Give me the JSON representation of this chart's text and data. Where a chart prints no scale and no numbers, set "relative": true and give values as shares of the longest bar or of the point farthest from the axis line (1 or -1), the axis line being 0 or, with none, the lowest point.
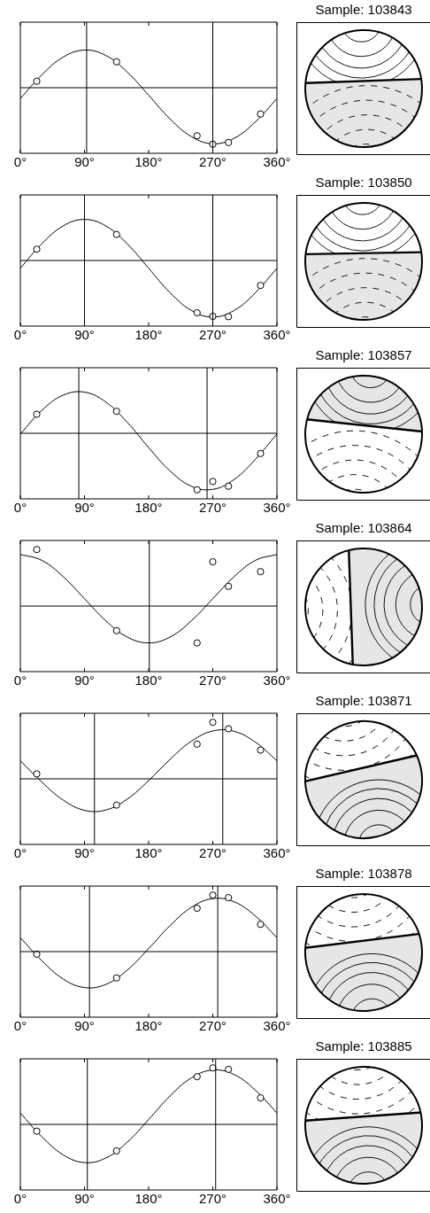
{
  "chart_data": [
    {
      "type": "scatter",
      "annotations": [
        "Sample: 103843"
      ],
      "relative": true,
      "tick_labels": "x",
      "grid": false,
      "legend": false,
      "xlim": [
        0,
        360
      ],
      "xticks": [
        {
          "value": 0,
          "label": "0°"
        },
        {
          "value": 90,
          "label": "90°"
        },
        {
          "value": 180,
          "label": "180°"
        },
        {
          "value": 270,
          "label": "270°"
        },
        {
          "value": 360,
          "label": "360°"
        }
      ],
      "series": [
        {
          "type": "line",
          "color": "#000000",
          "marker": "none",
          "x": [
            0,
            30,
            60,
            90,
            120,
            150,
            180,
            210,
            240,
            270,
            300,
            330,
            360
          ],
          "values": [
            -0.191,
            0.226,
            0.541,
            0.666,
            0.57,
            0.277,
            -0.133,
            -0.551,
            -0.865,
            -0.991,
            -0.894,
            -0.602,
            -0.191
          ]
        },
        {
          "type": "scatter",
          "color": "#000000",
          "marker": "circle",
          "x": [
            23,
            135,
            248,
            270,
            292,
            337
          ],
          "values": [
            0.114,
            0.459,
            -0.85,
            -1,
            -0.97,
            -0.464
          ]
        }
      ],
      "ref_lines": [
        {
          "axis": "y",
          "value": 0
        },
        {
          "axis": "x",
          "value": 93
        },
        {
          "axis": "x",
          "value": 270
        }
      ]
    },
    {
      "type": "scatter",
      "annotations": [
        "Sample: 103850"
      ],
      "relative": true,
      "tick_labels": "x",
      "grid": false,
      "legend": false,
      "xlim": [
        0,
        360
      ],
      "xticks": [
        {
          "value": 0,
          "label": "0°"
        },
        {
          "value": 90,
          "label": "90°"
        },
        {
          "value": 180,
          "label": "180°"
        },
        {
          "value": 270,
          "label": "270°"
        },
        {
          "value": 360,
          "label": "360°"
        }
      ],
      "series": [
        {
          "type": "line",
          "color": "#000000",
          "marker": "none",
          "x": [
            0,
            30,
            60,
            90,
            120,
            150,
            180,
            210,
            240,
            270,
            300,
            330,
            360
          ],
          "values": [
            -0.137,
            0.295,
            0.611,
            0.727,
            0.611,
            0.295,
            -0.137,
            -0.568,
            -0.884,
            -1,
            -0.884,
            -0.568,
            -0.137
          ]
        },
        {
          "type": "scatter",
          "color": "#000000",
          "marker": "circle",
          "x": [
            23,
            135,
            248,
            270,
            292,
            337
          ],
          "values": [
            0.199,
            0.46,
            -0.925,
            -0.988,
            -0.994,
            -0.441
          ]
        }
      ],
      "ref_lines": [
        {
          "axis": "y",
          "value": 0
        },
        {
          "axis": "x",
          "value": 90
        },
        {
          "axis": "x",
          "value": 270
        }
      ]
    },
    {
      "type": "scatter",
      "annotations": [
        "Sample: 103857"
      ],
      "relative": true,
      "tick_labels": "x",
      "grid": false,
      "legend": false,
      "xlim": [
        0,
        360
      ],
      "xticks": [
        {
          "value": 0,
          "label": "0°"
        },
        {
          "value": 90,
          "label": "90°"
        },
        {
          "value": 180,
          "label": "180°"
        },
        {
          "value": 270,
          "label": "270°"
        },
        {
          "value": 360,
          "label": "360°"
        }
      ],
      "series": [
        {
          "type": "line",
          "color": "#000000",
          "marker": "none",
          "x": [
            0,
            30,
            60,
            90,
            120,
            150,
            180,
            210,
            240,
            270,
            300,
            330,
            360
          ],
          "values": [
            -0.011,
            0.403,
            0.674,
            0.728,
            0.553,
            0.194,
            -0.253,
            -0.666,
            -0.937,
            -0.992,
            -0.816,
            -0.457,
            -0.011
          ]
        },
        {
          "type": "scatter",
          "color": "#000000",
          "marker": "circle",
          "x": [
            23,
            135,
            248,
            270,
            292,
            337
          ],
          "values": [
            0.337,
            0.389,
            -1,
            -0.853,
            -0.937,
            -0.358
          ]
        }
      ],
      "ref_lines": [
        {
          "axis": "y",
          "value": 0
        },
        {
          "axis": "x",
          "value": 82
        },
        {
          "axis": "x",
          "value": 262
        }
      ]
    },
    {
      "type": "scatter",
      "annotations": [
        "Sample: 103864"
      ],
      "relative": true,
      "tick_labels": "x",
      "grid": false,
      "legend": false,
      "xlim": [
        0,
        360
      ],
      "xticks": [
        {
          "value": 0,
          "label": "0°"
        },
        {
          "value": 90,
          "label": "90°"
        },
        {
          "value": 180,
          "label": "180°"
        },
        {
          "value": 270,
          "label": "270°"
        },
        {
          "value": 360,
          "label": "360°"
        }
      ],
      "series": [
        {
          "type": "line",
          "color": "#000000",
          "marker": "none",
          "x": [
            0,
            30,
            60,
            90,
            120,
            150,
            180,
            210,
            240,
            270,
            300,
            330,
            360
          ],
          "values": [
            0.913,
            0.809,
            0.522,
            0.13,
            -0.261,
            -0.548,
            -0.652,
            -0.548,
            -0.261,
            0.13,
            0.522,
            0.809,
            0.913
          ]
        },
        {
          "type": "scatter",
          "color": "#000000",
          "marker": "circle",
          "x": [
            23,
            135,
            248,
            270,
            292,
            337
          ],
          "values": [
            1,
            -0.435,
            -0.652,
            0.783,
            0.348,
            0.609
          ]
        }
      ],
      "ref_lines": [
        {
          "axis": "y",
          "value": 0
        },
        {
          "axis": "x",
          "value": 181
        }
      ]
    },
    {
      "type": "scatter",
      "annotations": [
        "Sample: 103871"
      ],
      "relative": true,
      "tick_labels": "x",
      "grid": false,
      "legend": false,
      "xlim": [
        0,
        360
      ],
      "xticks": [
        {
          "value": 0,
          "label": "0°"
        },
        {
          "value": 90,
          "label": "90°"
        },
        {
          "value": 180,
          "label": "180°"
        },
        {
          "value": 270,
          "label": "270°"
        },
        {
          "value": 360,
          "label": "360°"
        }
      ],
      "series": [
        {
          "type": "line",
          "color": "#000000",
          "marker": "none",
          "x": [
            0,
            30,
            60,
            90,
            120,
            150,
            180,
            210,
            240,
            270,
            300,
            330,
            360
          ],
          "values": [
            0.32,
            -0.055,
            -0.375,
            -0.557,
            -0.551,
            -0.358,
            -0.031,
            0.345,
            0.665,
            0.846,
            0.84,
            0.647,
            0.32
          ]
        },
        {
          "type": "scatter",
          "color": "#000000",
          "marker": "circle",
          "x": [
            23,
            135,
            248,
            270,
            292,
            337
          ],
          "values": [
            0.088,
            -0.465,
            0.614,
            1,
            0.886,
            0.509
          ]
        }
      ],
      "ref_lines": [
        {
          "axis": "y",
          "value": 0
        },
        {
          "axis": "x",
          "value": 104
        },
        {
          "axis": "x",
          "value": 284
        }
      ]
    },
    {
      "type": "scatter",
      "annotations": [
        "Sample: 103878"
      ],
      "relative": true,
      "tick_labels": "x",
      "grid": false,
      "legend": false,
      "xlim": [
        0,
        360
      ],
      "xticks": [
        {
          "value": 0,
          "label": "0°"
        },
        {
          "value": 90,
          "label": "90°"
        },
        {
          "value": 180,
          "label": "180°"
        },
        {
          "value": 270,
          "label": "270°"
        },
        {
          "value": 360,
          "label": "360°"
        }
      ],
      "series": [
        {
          "type": "line",
          "color": "#000000",
          "marker": "none",
          "x": [
            0,
            30,
            60,
            90,
            120,
            150,
            180,
            210,
            240,
            270,
            300,
            330,
            360
          ],
          "values": [
            0.247,
            -0.159,
            -0.483,
            -0.636,
            -0.58,
            -0.327,
            0.054,
            0.46,
            0.784,
            0.938,
            0.881,
            0.628,
            0.247
          ]
        },
        {
          "type": "scatter",
          "color": "#000000",
          "marker": "circle",
          "x": [
            23,
            135,
            248,
            270,
            292,
            337
          ],
          "values": [
            -0.045,
            -0.466,
            0.767,
            1,
            0.955,
            0.483
          ]
        }
      ],
      "ref_lines": [
        {
          "axis": "y",
          "value": 0
        },
        {
          "axis": "x",
          "value": 97
        },
        {
          "axis": "x",
          "value": 277
        }
      ]
    },
    {
      "type": "scatter",
      "annotations": [
        "Sample: 103885"
      ],
      "relative": true,
      "tick_labels": "x",
      "grid": false,
      "legend": false,
      "xlim": [
        0,
        360
      ],
      "xticks": [
        {
          "value": 0,
          "label": "0°"
        },
        {
          "value": 90,
          "label": "90°"
        },
        {
          "value": 180,
          "label": "180°"
        },
        {
          "value": 270,
          "label": "270°"
        },
        {
          "value": 360,
          "label": "360°"
        }
      ],
      "series": [
        {
          "type": "line",
          "color": "#000000",
          "marker": "none",
          "x": [
            0,
            30,
            60,
            90,
            120,
            150,
            180,
            210,
            240,
            270,
            300,
            330,
            360
          ],
          "values": [
            0.201,
            -0.216,
            -0.537,
            -0.676,
            -0.594,
            -0.315,
            0.086,
            0.503,
            0.823,
            0.962,
            0.881,
            0.602,
            0.201
          ]
        },
        {
          "type": "scatter",
          "color": "#000000",
          "marker": "circle",
          "x": [
            23,
            135,
            248,
            270,
            292,
            337
          ],
          "values": [
            -0.12,
            -0.469,
            0.844,
            1,
            0.974,
            0.469
          ]
        }
      ],
      "ref_lines": [
        {
          "axis": "y",
          "value": 0
        },
        {
          "axis": "x",
          "value": 94
        },
        {
          "axis": "x",
          "value": 274
        }
      ]
    }
  ]
}
